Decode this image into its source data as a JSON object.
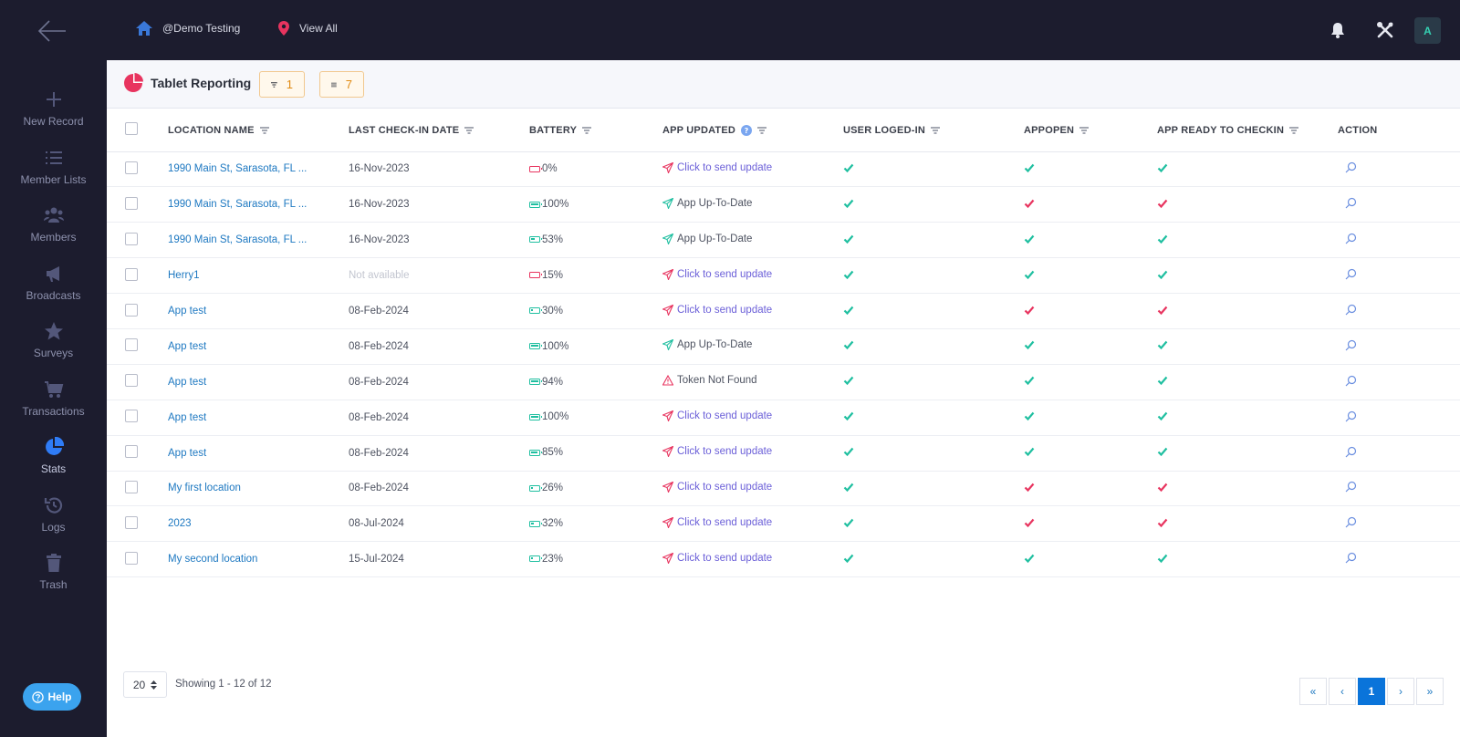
{
  "topbar": {
    "home_label": "@Demo Testing",
    "location_label": "View All",
    "avatar_letter": "A"
  },
  "sidebar": {
    "items": [
      {
        "label": "New Record",
        "icon": "plus-icon"
      },
      {
        "label": "Member Lists",
        "icon": "list-icon"
      },
      {
        "label": "Members",
        "icon": "users-icon"
      },
      {
        "label": "Broadcasts",
        "icon": "megaphone-icon"
      },
      {
        "label": "Surveys",
        "icon": "star-icon"
      },
      {
        "label": "Transactions",
        "icon": "cart-icon"
      },
      {
        "label": "Stats",
        "icon": "pie-chart-icon",
        "active": true
      },
      {
        "label": "Logs",
        "icon": "history-icon"
      },
      {
        "label": "Trash",
        "icon": "trash-icon"
      }
    ],
    "help_label": "Help"
  },
  "header": {
    "title": "Tablet Reporting",
    "filter_count": "1",
    "list_count": "7"
  },
  "table": {
    "columns": [
      "LOCATION NAME",
      "LAST CHECK-IN DATE",
      "BATTERY",
      "APP UPDATED",
      "USER LOGED-IN",
      "APPOPEN",
      "APP READY TO CHECKIN",
      "ACTION"
    ],
    "rows": [
      {
        "location": "1990 Main St, Sarasota, FL ...",
        "date": "16-Nov-2023",
        "battery": "0%",
        "battery_level": 0,
        "app_updated": "Click to send update",
        "update_state": "send",
        "logged_in": "yes",
        "app_open": "yes",
        "ready": "yes"
      },
      {
        "location": "1990 Main St, Sarasota, FL ...",
        "date": "16-Nov-2023",
        "battery": "100%",
        "battery_level": 100,
        "app_updated": "App Up-To-Date",
        "update_state": "ok",
        "logged_in": "yes",
        "app_open": "no",
        "ready": "no"
      },
      {
        "location": "1990 Main St, Sarasota, FL ...",
        "date": "16-Nov-2023",
        "battery": "53%",
        "battery_level": 53,
        "app_updated": "App Up-To-Date",
        "update_state": "ok",
        "logged_in": "yes",
        "app_open": "yes",
        "ready": "yes"
      },
      {
        "location": "Herry1",
        "date": "Not available",
        "battery": "15%",
        "battery_level": 15,
        "app_updated": "Click to send update",
        "update_state": "send",
        "logged_in": "yes",
        "app_open": "yes",
        "ready": "yes"
      },
      {
        "location": "App test",
        "date": "08-Feb-2024",
        "battery": "30%",
        "battery_level": 30,
        "app_updated": "Click to send update",
        "update_state": "send",
        "logged_in": "yes",
        "app_open": "no",
        "ready": "no"
      },
      {
        "location": "App test",
        "date": "08-Feb-2024",
        "battery": "100%",
        "battery_level": 100,
        "app_updated": "App Up-To-Date",
        "update_state": "ok",
        "logged_in": "yes",
        "app_open": "yes",
        "ready": "yes"
      },
      {
        "location": "App test",
        "date": "08-Feb-2024",
        "battery": "94%",
        "battery_level": 94,
        "app_updated": "Token Not Found",
        "update_state": "warn",
        "logged_in": "yes",
        "app_open": "yes",
        "ready": "yes"
      },
      {
        "location": "App test",
        "date": "08-Feb-2024",
        "battery": "100%",
        "battery_level": 100,
        "app_updated": "Click to send update",
        "update_state": "send",
        "logged_in": "yes",
        "app_open": "yes",
        "ready": "yes"
      },
      {
        "location": "App test",
        "date": "08-Feb-2024",
        "battery": "85%",
        "battery_level": 85,
        "app_updated": "Click to send update",
        "update_state": "send",
        "logged_in": "yes",
        "app_open": "yes",
        "ready": "yes"
      },
      {
        "location": "My first location",
        "date": "08-Feb-2024",
        "battery": "26%",
        "battery_level": 26,
        "app_updated": "Click to send update",
        "update_state": "send",
        "logged_in": "yes",
        "app_open": "no",
        "ready": "no"
      },
      {
        "location": "2023",
        "date": "08-Jul-2024",
        "battery": "32%",
        "battery_level": 32,
        "app_updated": "Click to send update",
        "update_state": "send",
        "logged_in": "yes",
        "app_open": "no",
        "ready": "no"
      },
      {
        "location": "My second location",
        "date": "15-Jul-2024",
        "battery": "23%",
        "battery_level": 23,
        "app_updated": "Click to send update",
        "update_state": "send",
        "logged_in": "yes",
        "app_open": "yes",
        "ready": "yes"
      }
    ]
  },
  "footer": {
    "page_size": "20",
    "showing": "Showing 1 - 12 of 12",
    "pager": [
      "«",
      "‹",
      "1",
      "›",
      "»"
    ],
    "current_page": "1"
  },
  "colors": {
    "green": "#1fbfa0",
    "red": "#e8345f",
    "link": "#1d78c1",
    "send": "#6b5fd8",
    "dark": "#1c1c2e"
  }
}
